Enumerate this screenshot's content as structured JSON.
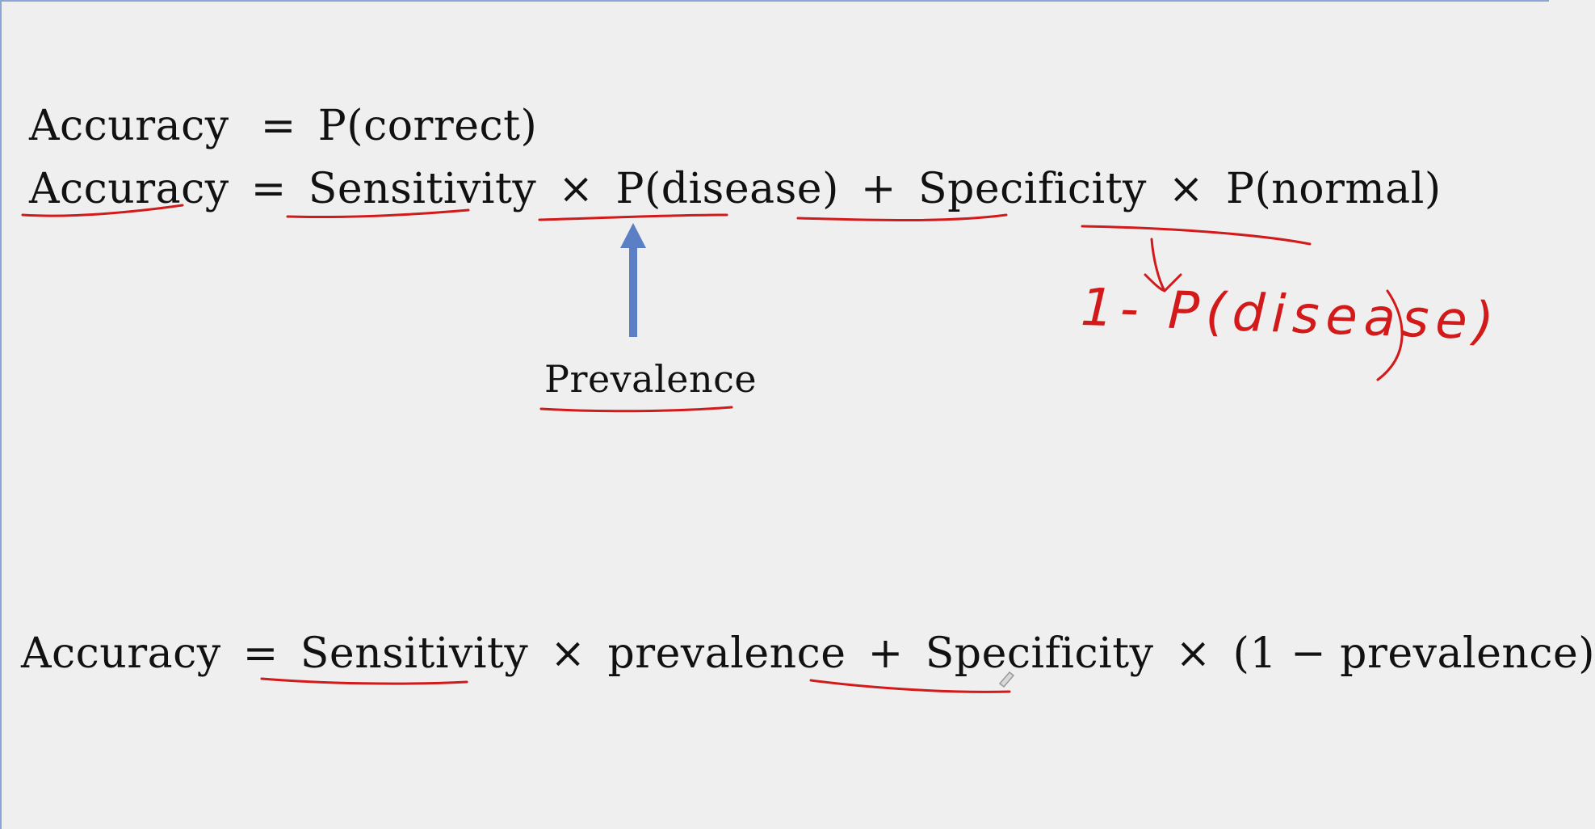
{
  "equations": {
    "line1": {
      "lhs": "Accuracy",
      "eq": "=",
      "rhs": "P(correct)"
    },
    "line2": {
      "lhs": "Accuracy",
      "eq": "=",
      "t1": "Sensitivity",
      "times1": "×",
      "t2": "P(disease)",
      "plus": "+",
      "t3": "Specificity",
      "times2": "×",
      "t4": "P(normal)"
    },
    "line3": {
      "lhs": "Accuracy",
      "eq": "=",
      "t1": "Sensitivity",
      "times1": "×",
      "t2": "prevalence",
      "plus": "+",
      "t3": "Specificity",
      "times2": "×",
      "t4": "(1 − prevalence)"
    }
  },
  "annotations": {
    "prevalence_label": "Prevalence",
    "handwritten_note": "1- P(disease)"
  },
  "colors": {
    "background": "#efefef",
    "text": "#111111",
    "ink_red": "#d21a1a",
    "arrow_blue": "#5b7fc4"
  }
}
